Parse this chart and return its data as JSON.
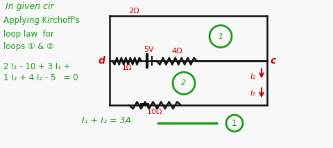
{
  "bg_color": "#f8f8f8",
  "green_color": "#1a9a1a",
  "red_color": "#cc0000",
  "black_color": "#111111",
  "title_text": "In given cir",
  "line1": "Applying Kirchoff's",
  "line2": "loop law  for",
  "line3": "loops ① & ②",
  "eq1": "2 I₁ - 10 + 3 I₁ +",
  "eq2": "1·I₂ + 4 I₂ - 5   = 0",
  "eq3": "I₁ + I₂ = 3A",
  "label_d": "d",
  "label_c": "c",
  "label_2ohm": "2Ω",
  "label_5V": "5V",
  "label_4ohm": "4Ω",
  "label_1ohm": "1Ω",
  "label_10ohm": "10Ω",
  "label_I2_1": "I₂",
  "label_I2_2": "I₂",
  "loop1_label": "1",
  "loop2_label": "2"
}
